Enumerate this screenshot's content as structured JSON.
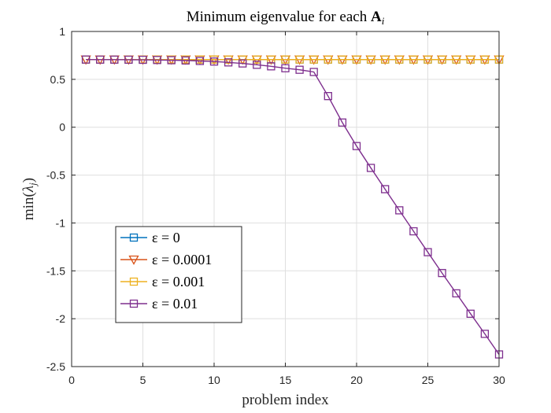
{
  "chart_data": {
    "type": "line",
    "title": "Minimum eigenvalue for each A_i",
    "title_parts": {
      "prefix": "Minimum eigenvalue for each ",
      "symbol": "A",
      "subscript": "i"
    },
    "xlabel": "problem index",
    "ylabel": "min(λ_j)",
    "ylabel_parts": {
      "prefix": "min(",
      "symbol": "λ",
      "subscript": "j",
      "suffix": ")"
    },
    "xlim": [
      0,
      30
    ],
    "ylim": [
      -2.5,
      1
    ],
    "xticks": [
      0,
      5,
      10,
      15,
      20,
      25,
      30
    ],
    "xtick_labels": [
      "0",
      "5",
      "10",
      "15",
      "20",
      "25",
      "30"
    ],
    "yticks": [
      -2.5,
      -2,
      -1.5,
      -1,
      -0.5,
      0,
      0.5,
      1
    ],
    "ytick_labels": [
      "-2.5",
      "-2",
      "-1.5",
      "-1",
      "-0.5",
      "0",
      "0.5",
      "1"
    ],
    "grid": true,
    "legend_position": "lower-left",
    "x": [
      1,
      2,
      3,
      4,
      5,
      6,
      7,
      8,
      9,
      10,
      11,
      12,
      13,
      14,
      15,
      16,
      17,
      18,
      19,
      20,
      21,
      22,
      23,
      24,
      25,
      26,
      27,
      28,
      29,
      30
    ],
    "series": [
      {
        "name": "ε = 0",
        "color": "#0072BD",
        "marker": "square",
        "values": [
          0.707,
          0.707,
          0.707,
          0.707,
          0.707,
          0.707,
          0.707,
          0.707,
          0.707,
          0.707,
          0.707,
          0.707,
          0.707,
          0.707,
          0.707,
          0.707,
          0.707,
          0.707,
          0.707,
          0.707,
          0.707,
          0.707,
          0.707,
          0.707,
          0.707,
          0.707,
          0.707,
          0.707,
          0.707,
          0.707
        ]
      },
      {
        "name": "ε = 0.0001",
        "color": "#D95319",
        "marker": "triangle-down",
        "values": [
          0.707,
          0.707,
          0.707,
          0.707,
          0.707,
          0.707,
          0.707,
          0.707,
          0.707,
          0.707,
          0.707,
          0.707,
          0.707,
          0.707,
          0.707,
          0.707,
          0.707,
          0.707,
          0.707,
          0.707,
          0.707,
          0.707,
          0.707,
          0.707,
          0.707,
          0.707,
          0.707,
          0.707,
          0.707,
          0.707
        ]
      },
      {
        "name": "ε = 0.001",
        "color": "#EDB120",
        "marker": "square",
        "values": [
          0.707,
          0.707,
          0.707,
          0.707,
          0.707,
          0.707,
          0.707,
          0.707,
          0.707,
          0.707,
          0.707,
          0.707,
          0.707,
          0.707,
          0.707,
          0.707,
          0.707,
          0.707,
          0.707,
          0.707,
          0.707,
          0.707,
          0.707,
          0.707,
          0.707,
          0.707,
          0.707,
          0.707,
          0.707,
          0.707
        ]
      },
      {
        "name": "ε = 0.01",
        "color": "#7E2F8E",
        "marker": "square",
        "values": [
          0.707,
          0.706,
          0.706,
          0.705,
          0.704,
          0.702,
          0.7,
          0.697,
          0.692,
          0.686,
          0.677,
          0.666,
          0.652,
          0.636,
          0.616,
          0.6,
          0.577,
          0.325,
          0.049,
          -0.197,
          -0.425,
          -0.647,
          -0.868,
          -1.087,
          -1.305,
          -1.523,
          -1.735,
          -1.948,
          -2.158,
          -2.373
        ]
      }
    ]
  }
}
